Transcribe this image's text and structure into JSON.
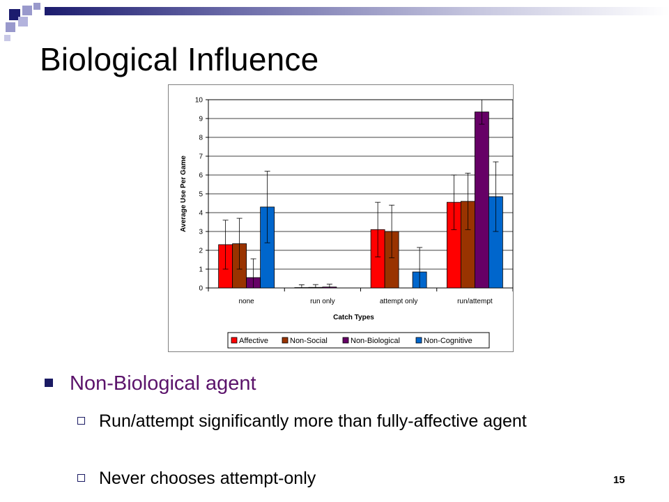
{
  "slide": {
    "title": "Biological Influence",
    "page_number": "15"
  },
  "bullets": {
    "level1": "Non-Biological agent",
    "level2": [
      "Run/attempt significantly more than fully-affective agent",
      "Never chooses attempt-only"
    ]
  },
  "colors": {
    "deco_navy": "#1c1c6e",
    "deco_lavender": "#9999cc",
    "bullet_accent": "#5b136b"
  },
  "chart_data": {
    "type": "bar",
    "title": "",
    "xlabel": "Catch Types",
    "ylabel": "Average Use Per Game",
    "ylim": [
      0,
      10
    ],
    "yticks": [
      "0",
      "1",
      "2",
      "3",
      "4",
      "5",
      "6",
      "7",
      "8",
      "9",
      "10"
    ],
    "grid": true,
    "legend_position": "bottom",
    "categories": [
      "none",
      "run only",
      "attempt only",
      "run/attempt"
    ],
    "series": [
      {
        "name": "Affective",
        "color": "#ff0000",
        "values": [
          2.3,
          0.02,
          3.1,
          4.55
        ],
        "errors": [
          1.3,
          0.15,
          1.45,
          1.45
        ]
      },
      {
        "name": "Non-Social",
        "color": "#993300",
        "values": [
          2.35,
          0.03,
          3.0,
          4.6
        ],
        "errors": [
          1.35,
          0.15,
          1.4,
          1.5
        ]
      },
      {
        "name": "Non-Biological",
        "color": "#660066",
        "values": [
          0.55,
          0.05,
          0.0,
          9.35
        ],
        "errors": [
          1.0,
          0.15,
          0,
          0.65
        ]
      },
      {
        "name": "Non-Cognitive",
        "color": "#0066cc",
        "values": [
          4.3,
          0.0,
          0.85,
          4.85
        ],
        "errors": [
          1.9,
          0,
          1.3,
          1.85
        ]
      }
    ]
  }
}
